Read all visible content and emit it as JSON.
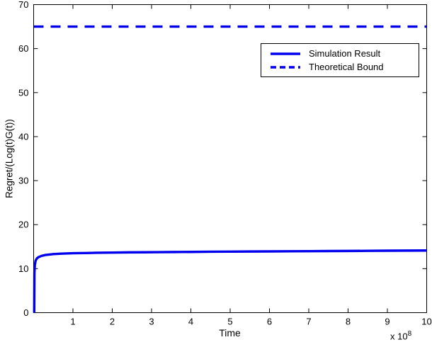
{
  "chart_data": {
    "type": "line",
    "title": "",
    "xlabel": "Time",
    "ylabel": "Regret/(Log(t)G(t))",
    "x_scale_base": "x 10",
    "x_scale_exp": "8",
    "xlim": [
      0,
      10
    ],
    "ylim": [
      0,
      70
    ],
    "xticks": [
      1,
      2,
      3,
      4,
      5,
      6,
      7,
      8,
      9,
      10
    ],
    "yticks": [
      0,
      10,
      20,
      30,
      40,
      50,
      60,
      70
    ],
    "grid": false,
    "legend_position": "upper-right",
    "line_color": "#0000ee",
    "axis_color": "#000000",
    "background_color": "#ffffff",
    "series": [
      {
        "name": "Simulation Result",
        "style": "solid",
        "x": [
          0.015,
          0.02,
          0.03,
          0.05,
          0.08,
          0.12,
          0.2,
          0.3,
          0.5,
          0.7,
          1.0,
          1.3,
          1.6,
          2.0,
          2.4,
          2.8,
          3.2,
          3.6,
          4.0,
          4.5,
          5.0,
          5.5,
          6.0,
          6.5,
          7.0,
          7.5,
          8.0,
          8.5,
          9.0,
          9.5,
          10.0
        ],
        "y": [
          0,
          9.0,
          10.8,
          11.8,
          12.3,
          12.6,
          12.9,
          13.1,
          13.3,
          13.4,
          13.5,
          13.55,
          13.6,
          13.65,
          13.7,
          13.72,
          13.75,
          13.78,
          13.8,
          13.85,
          13.87,
          13.9,
          13.92,
          13.95,
          13.97,
          14.0,
          14.02,
          14.05,
          14.08,
          14.1,
          14.12
        ]
      },
      {
        "name": "Theoretical Bound",
        "style": "dashed",
        "x": [
          0,
          10
        ],
        "y": [
          65,
          65
        ]
      }
    ]
  }
}
